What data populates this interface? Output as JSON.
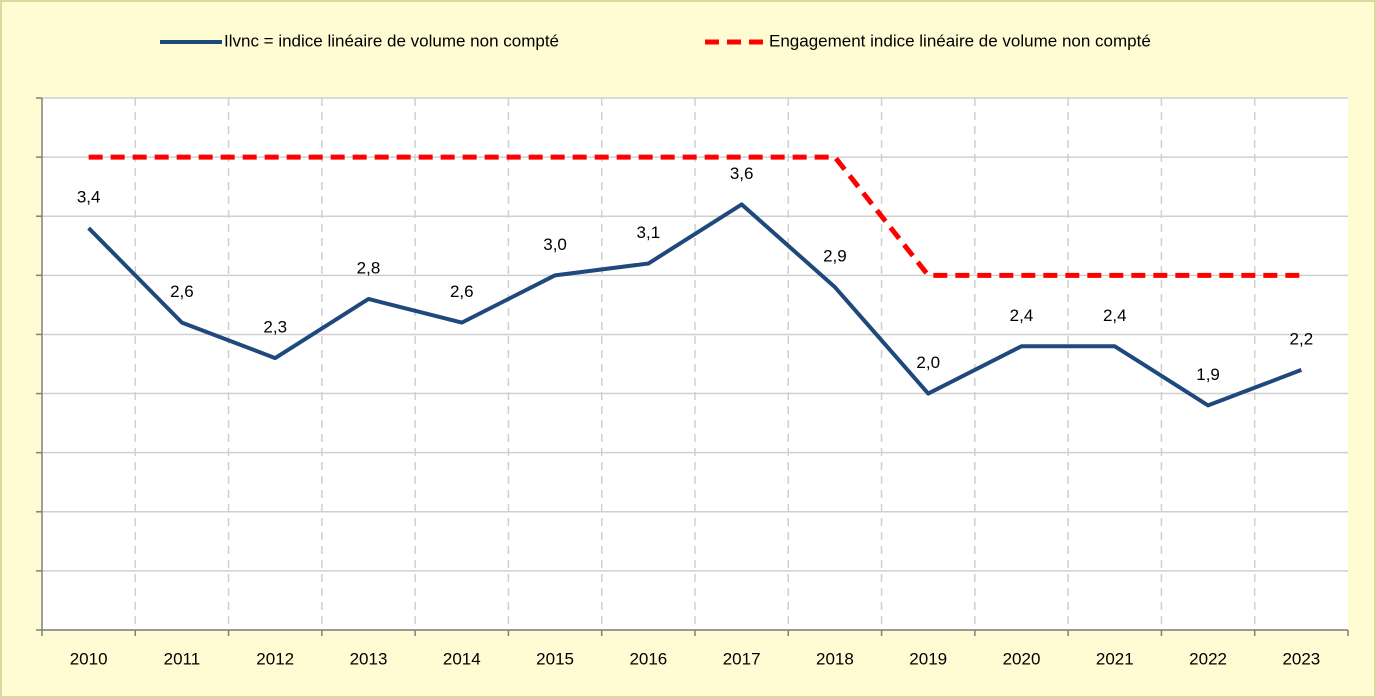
{
  "chart_data": {
    "type": "line",
    "categories": [
      "2010",
      "2011",
      "2012",
      "2013",
      "2014",
      "2015",
      "2016",
      "2017",
      "2018",
      "2019",
      "2020",
      "2021",
      "2022",
      "2023"
    ],
    "series": [
      {
        "name": "Ilvnc = indice linéaire de volume non compté",
        "color": "#1f497d",
        "style": "solid",
        "values": [
          3.4,
          2.6,
          2.3,
          2.8,
          2.6,
          3.0,
          3.1,
          3.6,
          2.9,
          2.0,
          2.4,
          2.4,
          1.9,
          2.2
        ],
        "value_labels": [
          "3,4",
          "2,6",
          "2,3",
          "2,8",
          "2,6",
          "3,0",
          "3,1",
          "3,6",
          "2,9",
          "2,0",
          "2,4",
          "2,4",
          "1,9",
          "2,2"
        ]
      },
      {
        "name": "Engagement indice linéaire de volume non compté",
        "color": "#ff0000",
        "style": "dashed",
        "values": [
          4.0,
          4.0,
          4.0,
          4.0,
          4.0,
          4.0,
          4.0,
          4.0,
          4.0,
          3.0,
          3.0,
          3.0,
          3.0,
          3.0
        ]
      }
    ],
    "ylim": [
      0,
      4.5
    ],
    "yticks": [
      0,
      0.5,
      1,
      1.5,
      2,
      2.5,
      3,
      3.5,
      4,
      4.5
    ],
    "grid": true,
    "legend": "top"
  }
}
